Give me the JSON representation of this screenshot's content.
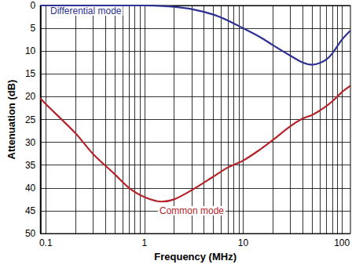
{
  "chart_data": {
    "type": "line",
    "x_label": "Frequency (MHz)",
    "y_label": "Attenuation (dB)",
    "log": "x",
    "grid": true,
    "xlim": [
      0.088,
      122
    ],
    "xticks": [
      0.1,
      1,
      10,
      100
    ],
    "ylim": [
      0,
      50
    ],
    "yticks": [
      0,
      5,
      10,
      15,
      20,
      25,
      30,
      35,
      40,
      45,
      50
    ],
    "x": [
      0.088,
      0.1,
      0.2,
      0.3,
      0.5,
      0.7,
      1,
      1.5,
      2,
      3,
      5,
      7,
      10,
      15,
      20,
      30,
      40,
      50,
      60,
      70,
      80,
      100,
      122
    ],
    "series": [
      {
        "name": "Differential mode",
        "color": "#2e3192",
        "values": [
          0,
          0,
          0,
          0,
          0,
          0,
          0,
          0.1,
          0.3,
          0.8,
          2,
          3.3,
          5,
          7,
          8.7,
          11,
          12.5,
          13,
          12.6,
          11.8,
          10.5,
          7.5,
          5.5
        ]
      },
      {
        "name": "Common mode",
        "color": "#b5232a",
        "values": [
          20.3,
          21.6,
          28,
          32.5,
          37,
          40,
          42,
          43,
          42.5,
          40.5,
          37.5,
          35.5,
          34,
          31.5,
          29.5,
          26.5,
          24.8,
          24,
          23,
          22,
          21,
          19,
          17.6
        ]
      }
    ]
  }
}
